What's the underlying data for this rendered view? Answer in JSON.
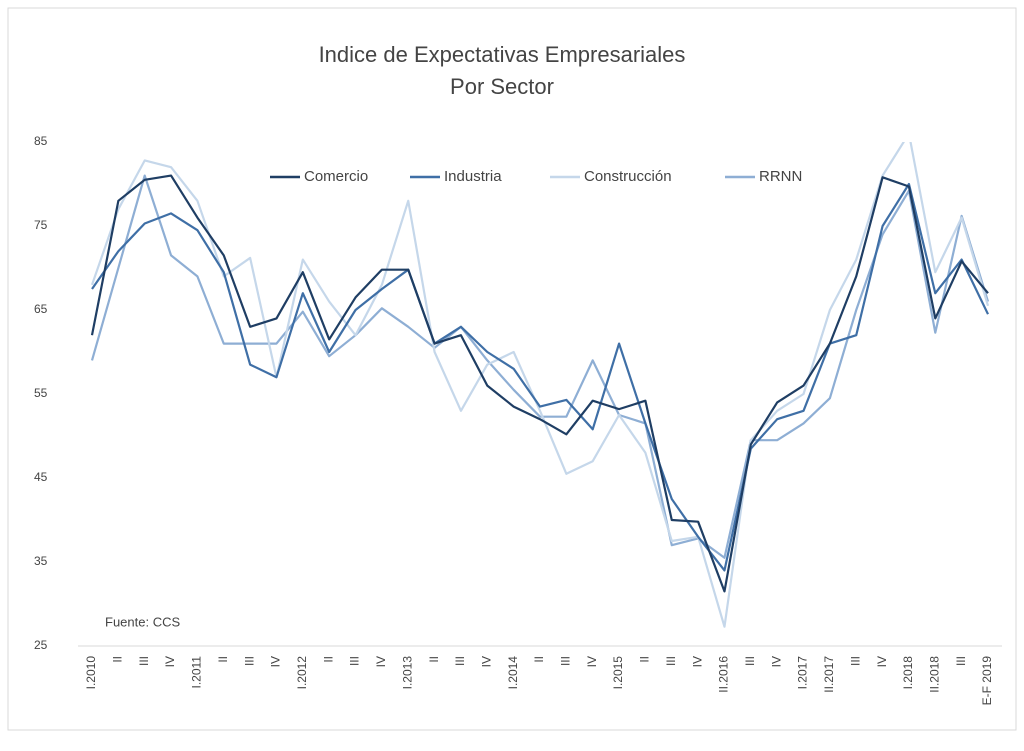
{
  "chart_data": {
    "type": "line",
    "title": "Indice de Expectativas Empresariales",
    "subtitle": "Por Sector",
    "annotation": "Fuente: CCS",
    "legend": "top",
    "grid": false,
    "categories": [
      "I.2010",
      "II",
      "III",
      "IV",
      "I.2011",
      "II",
      "III",
      "IV",
      "I.2012",
      "II",
      "III",
      "IV",
      "I.2013",
      "II",
      "III",
      "IV",
      "I.2014",
      "II",
      "III",
      "IV",
      "I.2015",
      "II",
      "III",
      "IV",
      "II.2016",
      "III",
      "IV",
      "I.2017",
      "II.2017",
      "III",
      "IV",
      "I.2018",
      "II.2018",
      "III",
      "E-F 2019"
    ],
    "series": [
      {
        "name": "Comercio",
        "color": "#1f3e64",
        "values": [
          62,
          78,
          80.5,
          81,
          76,
          71.5,
          63,
          64,
          69.5,
          61.5,
          66.5,
          69.8,
          69.8,
          61,
          62,
          56,
          53.5,
          52,
          50.2,
          54.2,
          53.2,
          54.2,
          40,
          39.8,
          31.5,
          49,
          54,
          56,
          61,
          69,
          80.8,
          79.7,
          64,
          70.8,
          67
        ]
      },
      {
        "name": "Industria",
        "color": "#3f6fa6",
        "values": [
          67.5,
          72,
          75.3,
          76.5,
          74.5,
          69.5,
          58.5,
          57,
          67,
          60,
          65,
          67.5,
          69.8,
          61,
          63,
          60,
          58,
          53.5,
          54.3,
          50.8,
          61,
          51.5,
          42.5,
          38,
          34,
          48.5,
          52,
          53,
          61,
          62,
          75,
          80,
          67,
          71,
          64.5
        ]
      },
      {
        "name": "Construcción",
        "color": "#c5d7ea",
        "values": [
          68,
          77,
          82.8,
          82,
          78,
          69,
          71.2,
          57,
          71,
          66,
          62,
          68,
          78,
          60,
          53,
          58.5,
          60,
          53,
          45.5,
          47,
          52.5,
          48,
          37.5,
          38,
          27.3,
          49.5,
          53,
          55,
          65,
          71,
          81,
          86,
          69.5,
          76,
          65.5
        ]
      },
      {
        "name": "RRNN",
        "color": "#8eaed4",
        "values": [
          59,
          70,
          81,
          71.5,
          69,
          61,
          61,
          61,
          64.8,
          59.5,
          62,
          65.2,
          63,
          60.5,
          63,
          59,
          55.5,
          52.3,
          52.3,
          59,
          52.5,
          51.5,
          37,
          37.8,
          35.5,
          49.5,
          49.5,
          51.5,
          54.5,
          65,
          74,
          79.2,
          62.3,
          76.2,
          66
        ]
      }
    ],
    "ylim": [
      25,
      85
    ],
    "yticks": [
      25,
      35,
      45,
      55,
      65,
      75,
      85
    ]
  }
}
